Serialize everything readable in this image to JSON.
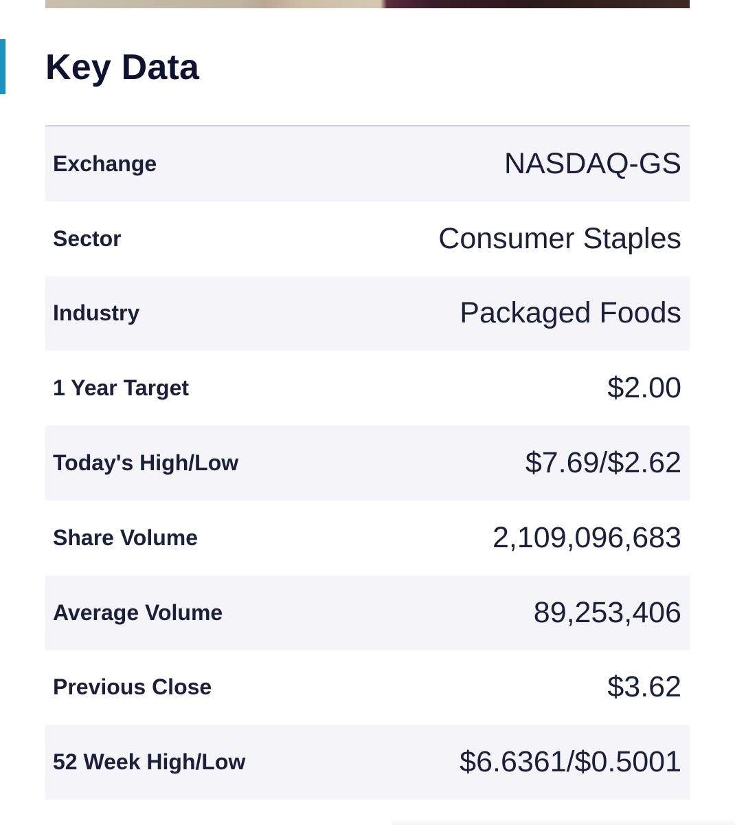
{
  "section": {
    "title": "Key Data"
  },
  "colors": {
    "accent": "#1a93c4",
    "title": "#0f1230",
    "row_shade": "#f4f4f9"
  },
  "rows": [
    {
      "label": "Exchange",
      "value": "NASDAQ-GS"
    },
    {
      "label": "Sector",
      "value": "Consumer Staples"
    },
    {
      "label": "Industry",
      "value": "Packaged Foods"
    },
    {
      "label": "1 Year Target",
      "value": "$2.00"
    },
    {
      "label": "Today's High/Low",
      "value": "$7.69/$2.62"
    },
    {
      "label": "Share Volume",
      "value": "2,109,096,683"
    },
    {
      "label": "Average Volume",
      "value": "89,253,406"
    },
    {
      "label": "Previous Close",
      "value": "$3.62"
    },
    {
      "label": "52 Week High/Low",
      "value": "$6.6361/$0.5001"
    }
  ]
}
